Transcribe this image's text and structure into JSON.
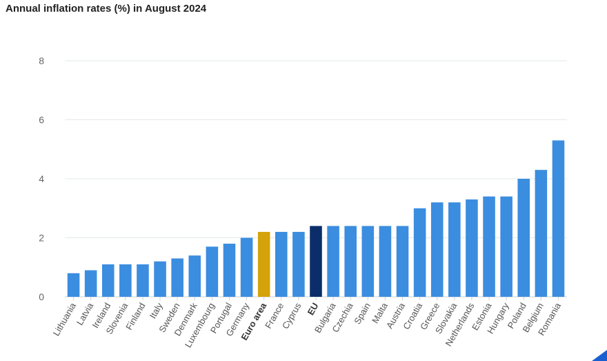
{
  "chart_data": {
    "type": "bar",
    "title": "Annual inflation rates (%) in August 2024",
    "xlabel": "",
    "ylabel": "",
    "ylim": [
      0,
      8
    ],
    "yticks": [
      0,
      2,
      4,
      6,
      8
    ],
    "grid": true,
    "categories": [
      "Lithuania",
      "Latvia",
      "Ireland",
      "Slovenia",
      "Finland",
      "Italy",
      "Sweden",
      "Denmark",
      "Luxembourg",
      "Portugal",
      "Germany",
      "Euro area",
      "France",
      "Cyprus",
      "EU",
      "Bulgaria",
      "Czechia",
      "Spain",
      "Malta",
      "Austria",
      "Croatia",
      "Greece",
      "Slovakia",
      "Netherlands",
      "Estonia",
      "Hungary",
      "Poland",
      "Belgium",
      "Romania"
    ],
    "values": [
      0.8,
      0.9,
      1.1,
      1.1,
      1.1,
      1.2,
      1.3,
      1.4,
      1.7,
      1.8,
      2.0,
      2.2,
      2.2,
      2.2,
      2.4,
      2.4,
      2.4,
      2.4,
      2.4,
      2.4,
      3.0,
      3.2,
      3.2,
      3.3,
      3.4,
      3.4,
      4.0,
      4.3,
      5.3
    ],
    "highlight": {
      "Euro area": "#d4a20a",
      "EU": "#0b2e6b"
    },
    "bold_labels": [
      "Euro area",
      "EU"
    ],
    "bar_color": "#3b8de0"
  }
}
